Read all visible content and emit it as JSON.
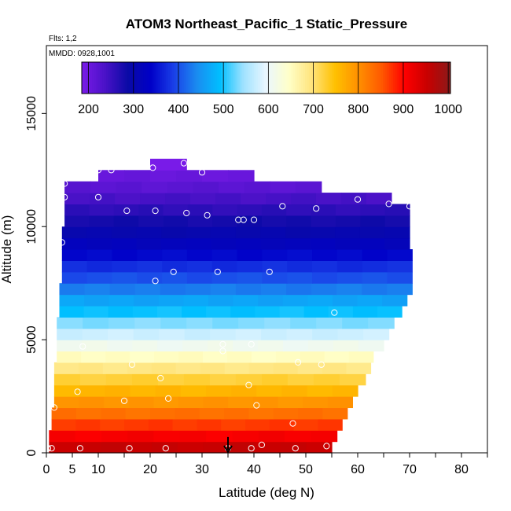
{
  "chart_data": {
    "type": "heatmap",
    "title": "ATOM3 Northeast_Pacific_1 Static_Pressure",
    "subtitle_flights": "Flts: 1,2",
    "subtitle_dates": "MMDD: 0928,1001",
    "xlabel": "Latitude (deg N)",
    "ylabel": "Altitude (m)",
    "xlim": [
      0,
      85
    ],
    "ylim": [
      0,
      18000
    ],
    "x_ticks": [
      0,
      5,
      10,
      20,
      30,
      40,
      50,
      60,
      70,
      80
    ],
    "x_minor_ticks": [
      15,
      25,
      35,
      45,
      55,
      65,
      75,
      85
    ],
    "y_ticks": [
      0,
      5000,
      10000,
      15000
    ],
    "colorbar": {
      "min": 185,
      "max": 1005,
      "ticks": [
        200,
        300,
        400,
        500,
        600,
        700,
        800,
        900,
        1000
      ],
      "colors": [
        "#7a1be8",
        "#4b12c8",
        "#0a0aa6",
        "#0000c8",
        "#1a40e8",
        "#1a8cf0",
        "#00bfff",
        "#9ee2ff",
        "#eaf7ff",
        "#ffffc8",
        "#ffe37a",
        "#ffc000",
        "#ff9000",
        "#ff5a00",
        "#ff0000",
        "#c80000",
        "#8b1a1a"
      ]
    },
    "bands": [
      {
        "alt": [
          0,
          500
        ],
        "lat": [
          0.5,
          55
        ],
        "value": 955
      },
      {
        "alt": [
          500,
          1000
        ],
        "lat": [
          0.5,
          56
        ],
        "value": 910
      },
      {
        "alt": [
          1000,
          1500
        ],
        "lat": [
          1,
          57
        ],
        "value": 870
      },
      {
        "alt": [
          1500,
          2000
        ],
        "lat": [
          1,
          58
        ],
        "value": 830
      },
      {
        "alt": [
          2000,
          2500
        ],
        "lat": [
          1.5,
          59
        ],
        "value": 795
      },
      {
        "alt": [
          2500,
          3000
        ],
        "lat": [
          1.5,
          60
        ],
        "value": 760
      },
      {
        "alt": [
          3000,
          3500
        ],
        "lat": [
          1.5,
          61.5
        ],
        "value": 725
      },
      {
        "alt": [
          3500,
          4000
        ],
        "lat": [
          1.5,
          62.5
        ],
        "value": 690
      },
      {
        "alt": [
          4000,
          4500
        ],
        "lat": [
          2,
          63
        ],
        "value": 650
      },
      {
        "alt": [
          4500,
          5000
        ],
        "lat": [
          2,
          65
        ],
        "value": 610
      },
      {
        "alt": [
          5000,
          5500
        ],
        "lat": [
          2,
          66
        ],
        "value": 575
      },
      {
        "alt": [
          5500,
          6000
        ],
        "lat": [
          2,
          67
        ],
        "value": 535
      },
      {
        "alt": [
          6000,
          6500
        ],
        "lat": [
          2.5,
          68.5
        ],
        "value": 495
      },
      {
        "alt": [
          6500,
          7000
        ],
        "lat": [
          2.5,
          69.5
        ],
        "value": 465
      },
      {
        "alt": [
          7000,
          7500
        ],
        "lat": [
          2.5,
          70.5
        ],
        "value": 430
      },
      {
        "alt": [
          7500,
          8000
        ],
        "lat": [
          3,
          70.5
        ],
        "value": 400
      },
      {
        "alt": [
          8000,
          8500
        ],
        "lat": [
          3,
          70.5
        ],
        "value": 375
      },
      {
        "alt": [
          8500,
          9000
        ],
        "lat": [
          3,
          70.5
        ],
        "value": 345
      },
      {
        "alt": [
          9000,
          9500
        ],
        "lat": [
          3,
          70
        ],
        "value": 320
      },
      {
        "alt": [
          9500,
          10000
        ],
        "lat": [
          3,
          70
        ],
        "value": 300
      },
      {
        "alt": [
          10000,
          10500
        ],
        "lat": [
          3.5,
          70
        ],
        "value": 280
      },
      {
        "alt": [
          10500,
          11000
        ],
        "lat": [
          3.5,
          70
        ],
        "value": 260
      },
      {
        "alt": [
          11000,
          11500
        ],
        "lat": [
          3.5,
          66.5
        ],
        "value": 240
      },
      {
        "alt": [
          11500,
          12000
        ],
        "lat": [
          3.5,
          53
        ],
        "value": 220
      },
      {
        "alt": [
          12000,
          12500
        ],
        "lat": [
          10,
          40
        ],
        "value": 205
      },
      {
        "alt": [
          12500,
          13000
        ],
        "lat": [
          20,
          27
        ],
        "value": 190
      }
    ],
    "samples": [
      [
        0.3,
        200
      ],
      [
        1,
        200
      ],
      [
        6.5,
        200
      ],
      [
        16,
        200
      ],
      [
        23,
        200
      ],
      [
        39.5,
        200
      ],
      [
        41.5,
        350
      ],
      [
        48,
        200
      ],
      [
        54,
        300
      ],
      [
        35,
        200
      ],
      [
        47.5,
        1300
      ],
      [
        1.5,
        2000
      ],
      [
        6,
        2700
      ],
      [
        15,
        2300
      ],
      [
        23.5,
        2400
      ],
      [
        40.5,
        2100
      ],
      [
        39,
        3000
      ],
      [
        22,
        3300
      ],
      [
        16.5,
        3900
      ],
      [
        48.5,
        4000
      ],
      [
        53,
        3900
      ],
      [
        34,
        4500
      ],
      [
        34,
        4800
      ],
      [
        39.5,
        4800
      ],
      [
        7,
        4700
      ],
      [
        55.5,
        6200
      ],
      [
        21,
        7600
      ],
      [
        24.5,
        8000
      ],
      [
        33,
        8000
      ],
      [
        43,
        8000
      ],
      [
        3,
        9300
      ],
      [
        3.5,
        11300
      ],
      [
        3.5,
        11900
      ],
      [
        10,
        11300
      ],
      [
        15.5,
        10700
      ],
      [
        21,
        10700
      ],
      [
        27,
        10600
      ],
      [
        31,
        10500
      ],
      [
        37,
        10300
      ],
      [
        38,
        10300
      ],
      [
        40,
        10300
      ],
      [
        45.5,
        10900
      ],
      [
        52,
        10800
      ],
      [
        60,
        11200
      ],
      [
        66,
        11000
      ],
      [
        70,
        10900
      ],
      [
        10,
        12500
      ],
      [
        12.5,
        12500
      ],
      [
        20.5,
        12600
      ],
      [
        26.5,
        12800
      ],
      [
        30,
        12400
      ]
    ],
    "annotation": {
      "type": "arrow",
      "x": 35,
      "y_from": 700,
      "y_to": 0
    }
  }
}
